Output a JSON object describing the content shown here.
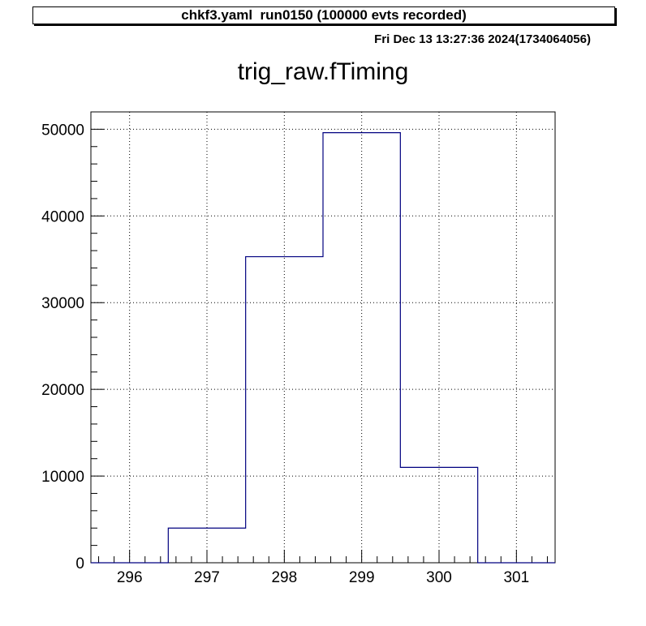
{
  "header": {
    "title": "chkf3.yaml  run0150 (100000 evts recorded)",
    "timestamp": "Fri Dec 13 13:27:36 2024(1734064056)"
  },
  "chart_data": {
    "type": "histogram",
    "title": "trig_raw.fTiming",
    "xlabel": "",
    "ylabel": "",
    "xlim": [
      295.5,
      301.5
    ],
    "ylim": [
      0,
      52000
    ],
    "x_ticks": [
      296,
      297,
      298,
      299,
      300,
      301
    ],
    "y_ticks": [
      0,
      10000,
      20000,
      30000,
      40000,
      50000
    ],
    "bin_width": 1,
    "bins": [
      {
        "center": 296,
        "value": 0
      },
      {
        "center": 297,
        "value": 4000
      },
      {
        "center": 298,
        "value": 35300
      },
      {
        "center": 299,
        "value": 49600
      },
      {
        "center": 300,
        "value": 11000
      },
      {
        "center": 301,
        "value": 0
      }
    ],
    "grid": true,
    "line_color": "#000080"
  }
}
